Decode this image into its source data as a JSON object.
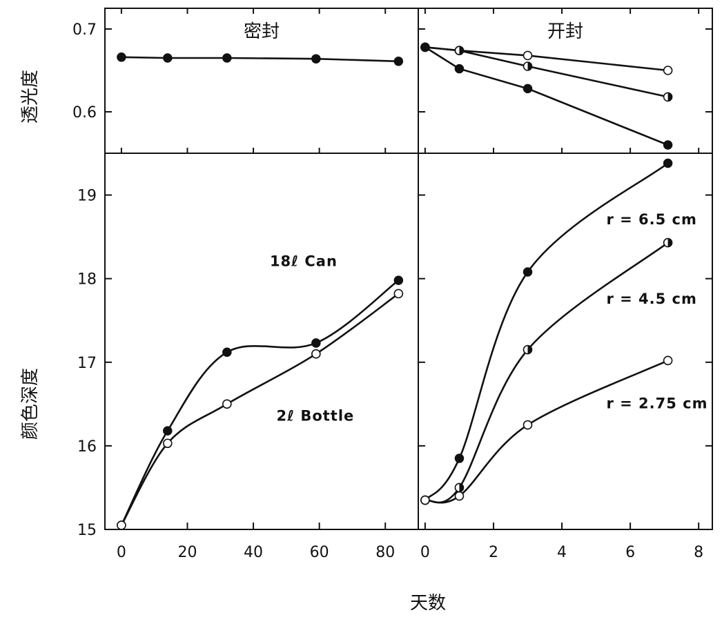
{
  "chart_data": [
    {
      "id": "sealed-transmittance",
      "type": "line",
      "title": "密封",
      "ylabel": "透光度",
      "xlim": [
        -5,
        90
      ],
      "ylim": [
        0.55,
        0.725
      ],
      "y_ticks": [
        0.6,
        0.7
      ],
      "y_tick_labels": [
        "0.6",
        "0.7"
      ],
      "series": [
        {
          "marker": "filled",
          "x": [
            0,
            14,
            32,
            59,
            84
          ],
          "y": [
            0.666,
            0.665,
            0.665,
            0.664,
            0.661
          ]
        }
      ],
      "annotations": []
    },
    {
      "id": "opened-transmittance",
      "type": "line",
      "title": "开封",
      "xlim": [
        -0.2,
        8.4
      ],
      "ylim": [
        0.55,
        0.725
      ],
      "series": [
        {
          "marker": "open",
          "x": [
            0,
            1,
            3,
            7.1
          ],
          "y": [
            0.678,
            0.674,
            0.668,
            0.65
          ]
        },
        {
          "marker": "half",
          "x": [
            0,
            1,
            3,
            7.1
          ],
          "y": [
            0.678,
            0.674,
            0.655,
            0.618
          ]
        },
        {
          "marker": "filled",
          "x": [
            0,
            1,
            3,
            7.1
          ],
          "y": [
            0.678,
            0.652,
            0.628,
            0.56
          ]
        }
      ],
      "annotations": []
    },
    {
      "id": "sealed-color",
      "type": "line",
      "ylabel": "颜色深度",
      "xlim": [
        -5,
        90
      ],
      "ylim": [
        15,
        19.5
      ],
      "x_ticks": [
        0,
        20,
        40,
        60,
        80
      ],
      "x_tick_labels": [
        "0",
        "20",
        "40",
        "60",
        "80"
      ],
      "y_ticks": [
        15,
        16,
        17,
        18,
        19
      ],
      "y_tick_labels": [
        "15",
        "16",
        "17",
        "18",
        "19"
      ],
      "series": [
        {
          "marker": "filled",
          "x": [
            0,
            14,
            32,
            59,
            84
          ],
          "y": [
            15.05,
            16.18,
            17.12,
            17.23,
            17.98
          ]
        },
        {
          "marker": "open",
          "x": [
            0,
            14,
            32,
            59,
            84
          ],
          "y": [
            15.05,
            16.03,
            16.5,
            17.1,
            17.82
          ]
        }
      ],
      "annotations": [
        {
          "text": "18ℓ Can",
          "x": 45,
          "y": 18.15
        },
        {
          "text": "2ℓ Bottle",
          "x": 47,
          "y": 16.3
        }
      ]
    },
    {
      "id": "opened-color",
      "type": "line",
      "xlim": [
        -0.2,
        8.4
      ],
      "ylim": [
        15,
        19.5
      ],
      "x_ticks": [
        0,
        2,
        4,
        6,
        8
      ],
      "x_tick_labels": [
        "0",
        "2",
        "4",
        "6",
        "8"
      ],
      "series": [
        {
          "marker": "filled",
          "x": [
            0,
            1,
            3,
            7.1
          ],
          "y": [
            15.35,
            15.85,
            18.08,
            19.38
          ]
        },
        {
          "marker": "half",
          "x": [
            0,
            1,
            3,
            7.1
          ],
          "y": [
            15.35,
            15.5,
            17.15,
            18.43
          ]
        },
        {
          "marker": "open",
          "x": [
            0,
            1,
            3,
            7.1
          ],
          "y": [
            15.35,
            15.4,
            16.25,
            17.02
          ]
        }
      ],
      "annotations": [
        {
          "text": "r = 6.5 cm",
          "x": 5.3,
          "y": 18.65
        },
        {
          "text": "r = 4.5 cm",
          "x": 5.3,
          "y": 17.7
        },
        {
          "text": "r = 2.75 cm",
          "x": 5.3,
          "y": 16.45
        }
      ]
    }
  ],
  "xlabel": "天数"
}
